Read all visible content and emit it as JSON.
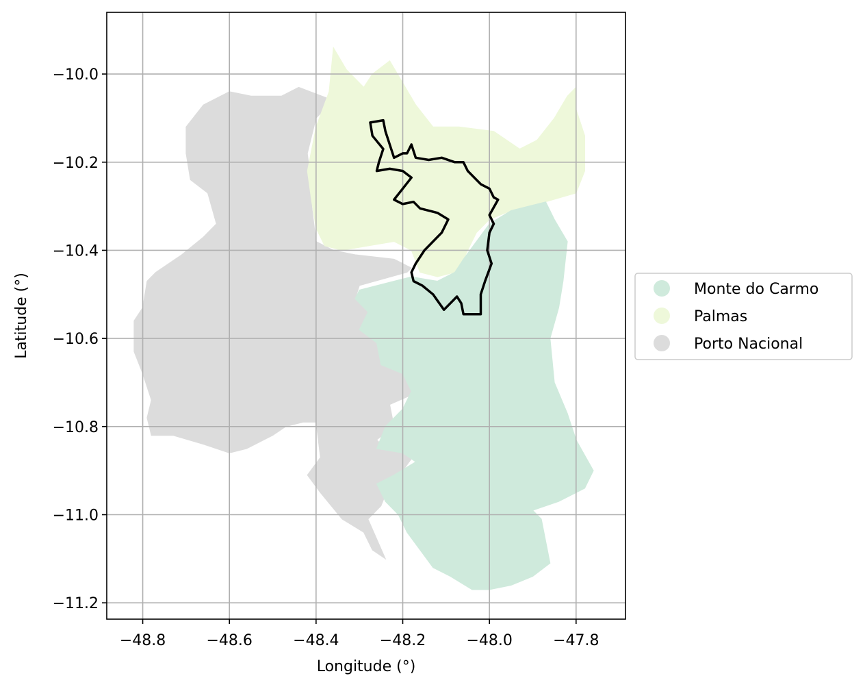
{
  "chart_data": {
    "type": "choropleth-map",
    "xlabel": "Longitude (°)",
    "ylabel": "Latitude (°)",
    "xlim": [
      -48.883,
      -47.686
    ],
    "ylim": [
      -11.237,
      -9.86
    ],
    "x_ticks": [
      {
        "value": -48.8,
        "label": "−48.8"
      },
      {
        "value": -48.6,
        "label": "−48.6"
      },
      {
        "value": -48.4,
        "label": "−48.4"
      },
      {
        "value": -48.2,
        "label": "−48.2"
      },
      {
        "value": -48.0,
        "label": "−48.0"
      },
      {
        "value": -47.8,
        "label": "−47.8"
      }
    ],
    "y_ticks": [
      {
        "value": -10.0,
        "label": "−10.0"
      },
      {
        "value": -10.2,
        "label": "−10.2"
      },
      {
        "value": -10.4,
        "label": "−10.4"
      },
      {
        "value": -10.6,
        "label": "−10.6"
      },
      {
        "value": -10.8,
        "label": "−10.8"
      },
      {
        "value": -11.0,
        "label": "−11.0"
      },
      {
        "value": -11.2,
        "label": "−11.2"
      }
    ],
    "grid": true,
    "legend_position": "center-right outside plot",
    "legend": [
      {
        "label": "Monte do Carmo",
        "color": "#cfeadc"
      },
      {
        "label": "Palmas",
        "color": "#eef8da"
      },
      {
        "label": "Porto Nacional",
        "color": "#dcdcdc"
      }
    ],
    "regions": [
      {
        "name": "Porto Nacional",
        "color": "#dcdcdc",
        "coords": [
          [
            -48.44,
            -10.03
          ],
          [
            -48.48,
            -10.05
          ],
          [
            -48.55,
            -10.05
          ],
          [
            -48.6,
            -10.04
          ],
          [
            -48.66,
            -10.07
          ],
          [
            -48.7,
            -10.12
          ],
          [
            -48.7,
            -10.18
          ],
          [
            -48.69,
            -10.24
          ],
          [
            -48.65,
            -10.27
          ],
          [
            -48.63,
            -10.34
          ],
          [
            -48.66,
            -10.37
          ],
          [
            -48.71,
            -10.41
          ],
          [
            -48.77,
            -10.45
          ],
          [
            -48.79,
            -10.47
          ],
          [
            -48.8,
            -10.53
          ],
          [
            -48.82,
            -10.56
          ],
          [
            -48.82,
            -10.63
          ],
          [
            -48.8,
            -10.68
          ],
          [
            -48.78,
            -10.74
          ],
          [
            -48.79,
            -10.78
          ],
          [
            -48.78,
            -10.82
          ],
          [
            -48.73,
            -10.82
          ],
          [
            -48.66,
            -10.84
          ],
          [
            -48.6,
            -10.86
          ],
          [
            -48.56,
            -10.85
          ],
          [
            -48.52,
            -10.83
          ],
          [
            -48.5,
            -10.82
          ],
          [
            -48.47,
            -10.8
          ],
          [
            -48.43,
            -10.79
          ],
          [
            -48.4,
            -10.79
          ],
          [
            -48.39,
            -10.87
          ],
          [
            -48.42,
            -10.91
          ],
          [
            -48.39,
            -10.95
          ],
          [
            -48.34,
            -11.01
          ],
          [
            -48.29,
            -11.04
          ],
          [
            -48.27,
            -11.08
          ],
          [
            -48.24,
            -11.1
          ],
          [
            -48.28,
            -11.01
          ],
          [
            -48.25,
            -10.98
          ],
          [
            -48.23,
            -10.93
          ],
          [
            -48.2,
            -10.9
          ],
          [
            -48.17,
            -10.86
          ],
          [
            -48.24,
            -10.85
          ],
          [
            -48.26,
            -10.83
          ],
          [
            -48.22,
            -10.8
          ],
          [
            -48.23,
            -10.75
          ],
          [
            -48.16,
            -10.72
          ],
          [
            -48.14,
            -10.68
          ],
          [
            -48.18,
            -10.64
          ],
          [
            -48.2,
            -10.57
          ],
          [
            -48.24,
            -10.54
          ],
          [
            -48.31,
            -10.51
          ],
          [
            -48.3,
            -10.48
          ],
          [
            -48.19,
            -10.45
          ],
          [
            -48.18,
            -10.44
          ],
          [
            -48.22,
            -10.42
          ],
          [
            -48.31,
            -10.41
          ],
          [
            -48.36,
            -10.4
          ],
          [
            -48.4,
            -10.38
          ],
          [
            -48.41,
            -10.3
          ],
          [
            -48.41,
            -10.26
          ],
          [
            -48.42,
            -10.18
          ],
          [
            -48.4,
            -10.1
          ],
          [
            -48.36,
            -10.06
          ]
        ]
      },
      {
        "name": "Palmas",
        "color": "#eef8da",
        "coords": [
          [
            -48.36,
            -9.94
          ],
          [
            -48.33,
            -9.99
          ],
          [
            -48.29,
            -10.03
          ],
          [
            -48.27,
            -10.0
          ],
          [
            -48.23,
            -9.97
          ],
          [
            -48.2,
            -10.02
          ],
          [
            -48.17,
            -10.07
          ],
          [
            -48.13,
            -10.12
          ],
          [
            -48.07,
            -10.12
          ],
          [
            -47.99,
            -10.13
          ],
          [
            -47.93,
            -10.17
          ],
          [
            -47.89,
            -10.15
          ],
          [
            -47.85,
            -10.1
          ],
          [
            -47.82,
            -10.05
          ],
          [
            -47.8,
            -10.03
          ],
          [
            -47.8,
            -10.08
          ],
          [
            -47.78,
            -10.14
          ],
          [
            -47.78,
            -10.22
          ],
          [
            -47.8,
            -10.27
          ],
          [
            -47.87,
            -10.29
          ],
          [
            -47.95,
            -10.31
          ],
          [
            -48.0,
            -10.33
          ],
          [
            -48.03,
            -10.36
          ],
          [
            -48.06,
            -10.42
          ],
          [
            -48.08,
            -10.45
          ],
          [
            -48.12,
            -10.46
          ],
          [
            -48.16,
            -10.45
          ],
          [
            -48.18,
            -10.4
          ],
          [
            -48.22,
            -10.38
          ],
          [
            -48.28,
            -10.39
          ],
          [
            -48.34,
            -10.4
          ],
          [
            -48.38,
            -10.39
          ],
          [
            -48.4,
            -10.35
          ],
          [
            -48.41,
            -10.29
          ],
          [
            -48.42,
            -10.22
          ],
          [
            -48.4,
            -10.12
          ],
          [
            -48.37,
            -10.04
          ]
        ]
      },
      {
        "name": "Monte do Carmo",
        "color": "#cfeadc",
        "coords": [
          [
            -47.87,
            -10.29
          ],
          [
            -47.95,
            -10.31
          ],
          [
            -48.0,
            -10.34
          ],
          [
            -48.03,
            -10.38
          ],
          [
            -48.06,
            -10.42
          ],
          [
            -48.08,
            -10.45
          ],
          [
            -48.12,
            -10.47
          ],
          [
            -48.18,
            -10.46
          ],
          [
            -48.22,
            -10.47
          ],
          [
            -48.3,
            -10.49
          ],
          [
            -48.31,
            -10.51
          ],
          [
            -48.28,
            -10.54
          ],
          [
            -48.3,
            -10.58
          ],
          [
            -48.26,
            -10.61
          ],
          [
            -48.25,
            -10.66
          ],
          [
            -48.2,
            -10.68
          ],
          [
            -48.18,
            -10.72
          ],
          [
            -48.2,
            -10.76
          ],
          [
            -48.24,
            -10.8
          ],
          [
            -48.26,
            -10.85
          ],
          [
            -48.2,
            -10.86
          ],
          [
            -48.17,
            -10.88
          ],
          [
            -48.22,
            -10.91
          ],
          [
            -48.26,
            -10.93
          ],
          [
            -48.24,
            -10.97
          ],
          [
            -48.21,
            -11.0
          ],
          [
            -48.19,
            -11.04
          ],
          [
            -48.16,
            -11.08
          ],
          [
            -48.13,
            -11.12
          ],
          [
            -48.09,
            -11.14
          ],
          [
            -48.04,
            -11.17
          ],
          [
            -48.0,
            -11.17
          ],
          [
            -47.95,
            -11.16
          ],
          [
            -47.9,
            -11.14
          ],
          [
            -47.86,
            -11.11
          ],
          [
            -47.88,
            -11.01
          ],
          [
            -47.9,
            -10.99
          ],
          [
            -47.84,
            -10.97
          ],
          [
            -47.78,
            -10.94
          ],
          [
            -47.76,
            -10.9
          ],
          [
            -47.8,
            -10.83
          ],
          [
            -47.82,
            -10.77
          ],
          [
            -47.85,
            -10.7
          ],
          [
            -47.86,
            -10.6
          ],
          [
            -47.84,
            -10.53
          ],
          [
            -47.83,
            -10.47
          ],
          [
            -47.82,
            -10.38
          ],
          [
            -47.85,
            -10.33
          ]
        ]
      }
    ],
    "outline": {
      "color": "#000000",
      "coords": [
        [
          -48.275,
          -10.11
        ],
        [
          -48.245,
          -10.105
        ],
        [
          -48.24,
          -10.13
        ],
        [
          -48.23,
          -10.16
        ],
        [
          -48.22,
          -10.19
        ],
        [
          -48.2,
          -10.18
        ],
        [
          -48.19,
          -10.18
        ],
        [
          -48.18,
          -10.16
        ],
        [
          -48.17,
          -10.19
        ],
        [
          -48.14,
          -10.195
        ],
        [
          -48.11,
          -10.19
        ],
        [
          -48.08,
          -10.2
        ],
        [
          -48.06,
          -10.2
        ],
        [
          -48.05,
          -10.22
        ],
        [
          -48.03,
          -10.24
        ],
        [
          -48.02,
          -10.25
        ],
        [
          -48.0,
          -10.26
        ],
        [
          -47.99,
          -10.28
        ],
        [
          -47.98,
          -10.285
        ],
        [
          -48.0,
          -10.32
        ],
        [
          -47.99,
          -10.34
        ],
        [
          -48.0,
          -10.36
        ],
        [
          -48.005,
          -10.4
        ],
        [
          -47.995,
          -10.43
        ],
        [
          -48.01,
          -10.47
        ],
        [
          -48.02,
          -10.5
        ],
        [
          -48.02,
          -10.545
        ],
        [
          -48.06,
          -10.545
        ],
        [
          -48.065,
          -10.52
        ],
        [
          -48.075,
          -10.505
        ],
        [
          -48.09,
          -10.52
        ],
        [
          -48.105,
          -10.535
        ],
        [
          -48.13,
          -10.5
        ],
        [
          -48.155,
          -10.48
        ],
        [
          -48.175,
          -10.47
        ],
        [
          -48.18,
          -10.45
        ],
        [
          -48.17,
          -10.43
        ],
        [
          -48.15,
          -10.4
        ],
        [
          -48.11,
          -10.36
        ],
        [
          -48.095,
          -10.33
        ],
        [
          -48.12,
          -10.315
        ],
        [
          -48.16,
          -10.305
        ],
        [
          -48.175,
          -10.29
        ],
        [
          -48.2,
          -10.295
        ],
        [
          -48.22,
          -10.285
        ],
        [
          -48.2,
          -10.26
        ],
        [
          -48.18,
          -10.235
        ],
        [
          -48.2,
          -10.22
        ],
        [
          -48.23,
          -10.215
        ],
        [
          -48.26,
          -10.22
        ],
        [
          -48.255,
          -10.2
        ],
        [
          -48.245,
          -10.17
        ],
        [
          -48.27,
          -10.14
        ]
      ]
    }
  }
}
